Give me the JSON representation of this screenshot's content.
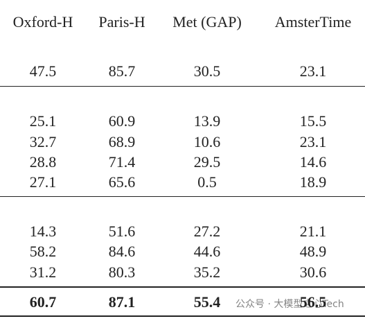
{
  "table": {
    "header": [
      "Oxford-H",
      "Paris-H",
      "Met (GAP)",
      "AmsterTime"
    ],
    "rows": [
      [
        "47.5",
        "85.7",
        "30.5",
        "23.1"
      ],
      [
        "25.1",
        "60.9",
        "13.9",
        "15.5"
      ],
      [
        "32.7",
        "68.9",
        "10.6",
        "23.1"
      ],
      [
        "28.8",
        "71.4",
        "29.5",
        "14.6"
      ],
      [
        "27.1",
        "65.6",
        "0.5",
        "18.9"
      ],
      [
        "14.3",
        "51.6",
        "27.2",
        "21.1"
      ],
      [
        "58.2",
        "84.6",
        "44.6",
        "48.9"
      ],
      [
        "31.2",
        "80.3",
        "35.2",
        "30.6"
      ]
    ],
    "final_row": [
      "60.7",
      "87.1",
      "55.4",
      "56.5"
    ]
  },
  "watermark": "公众号 · 大模型之心Tech"
}
